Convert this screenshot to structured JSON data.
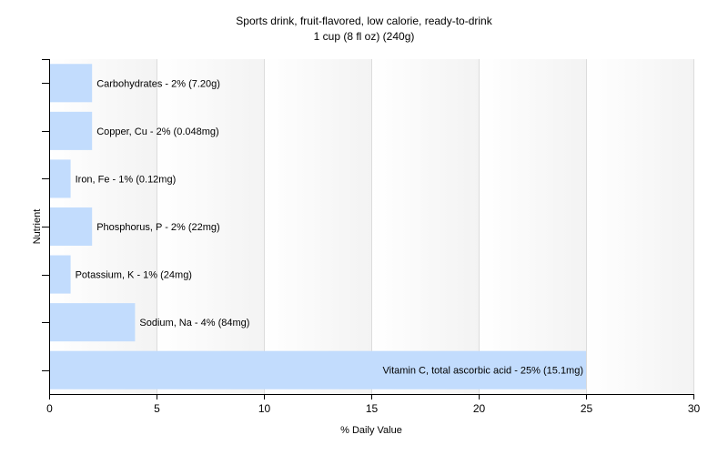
{
  "chart_data": {
    "type": "bar",
    "orientation": "horizontal",
    "title": "Sports drink, fruit-flavored, low calorie, ready-to-drink",
    "subtitle": "1 cup (8 fl oz) (240g)",
    "xlabel": "% Daily Value",
    "ylabel": "Nutrient",
    "xlim": [
      0,
      30
    ],
    "xticks": [
      0,
      5,
      10,
      15,
      20,
      25,
      30
    ],
    "grid": true,
    "legend": "none",
    "bar_color": "#c2dcfd",
    "categories": [
      "Carbohydrates",
      "Copper, Cu",
      "Iron, Fe",
      "Phosphorus, P",
      "Potassium, K",
      "Sodium, Na",
      "Vitamin C, total ascorbic acid"
    ],
    "values": [
      2,
      2,
      1,
      2,
      1,
      4,
      25
    ],
    "labels": [
      "Carbohydrates - 2% (7.20g)",
      "Copper, Cu - 2% (0.048mg)",
      "Iron, Fe - 1% (0.12mg)",
      "Phosphorus, P - 2% (22mg)",
      "Potassium, K - 1% (24mg)",
      "Sodium, Na - 4% (84mg)",
      "Vitamin C, total ascorbic acid - 25% (15.1mg)"
    ]
  }
}
